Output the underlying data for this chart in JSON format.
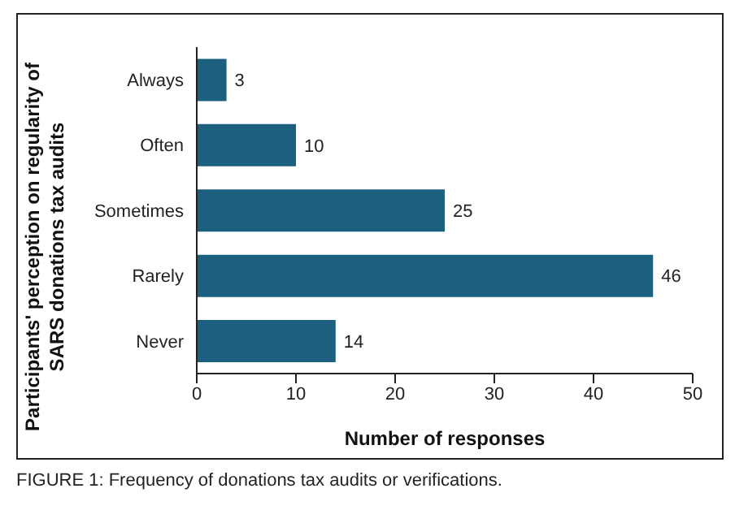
{
  "chart_data": {
    "type": "bar",
    "orientation": "horizontal",
    "categories": [
      "Always",
      "Often",
      "Sometimes",
      "Rarely",
      "Never"
    ],
    "values": [
      3,
      10,
      25,
      46,
      14
    ],
    "color": "#1c6080",
    "xlim": [
      0,
      50
    ],
    "xticks": [
      0,
      10,
      20,
      30,
      40,
      50
    ],
    "xlabel": "Number of responses",
    "ylabel": "Participants' perception on regularity of SARS donations tax audits",
    "data_labels": true,
    "annotations": [
      "FIGURE 1: Frequency of donations tax audits or verifications."
    ]
  }
}
